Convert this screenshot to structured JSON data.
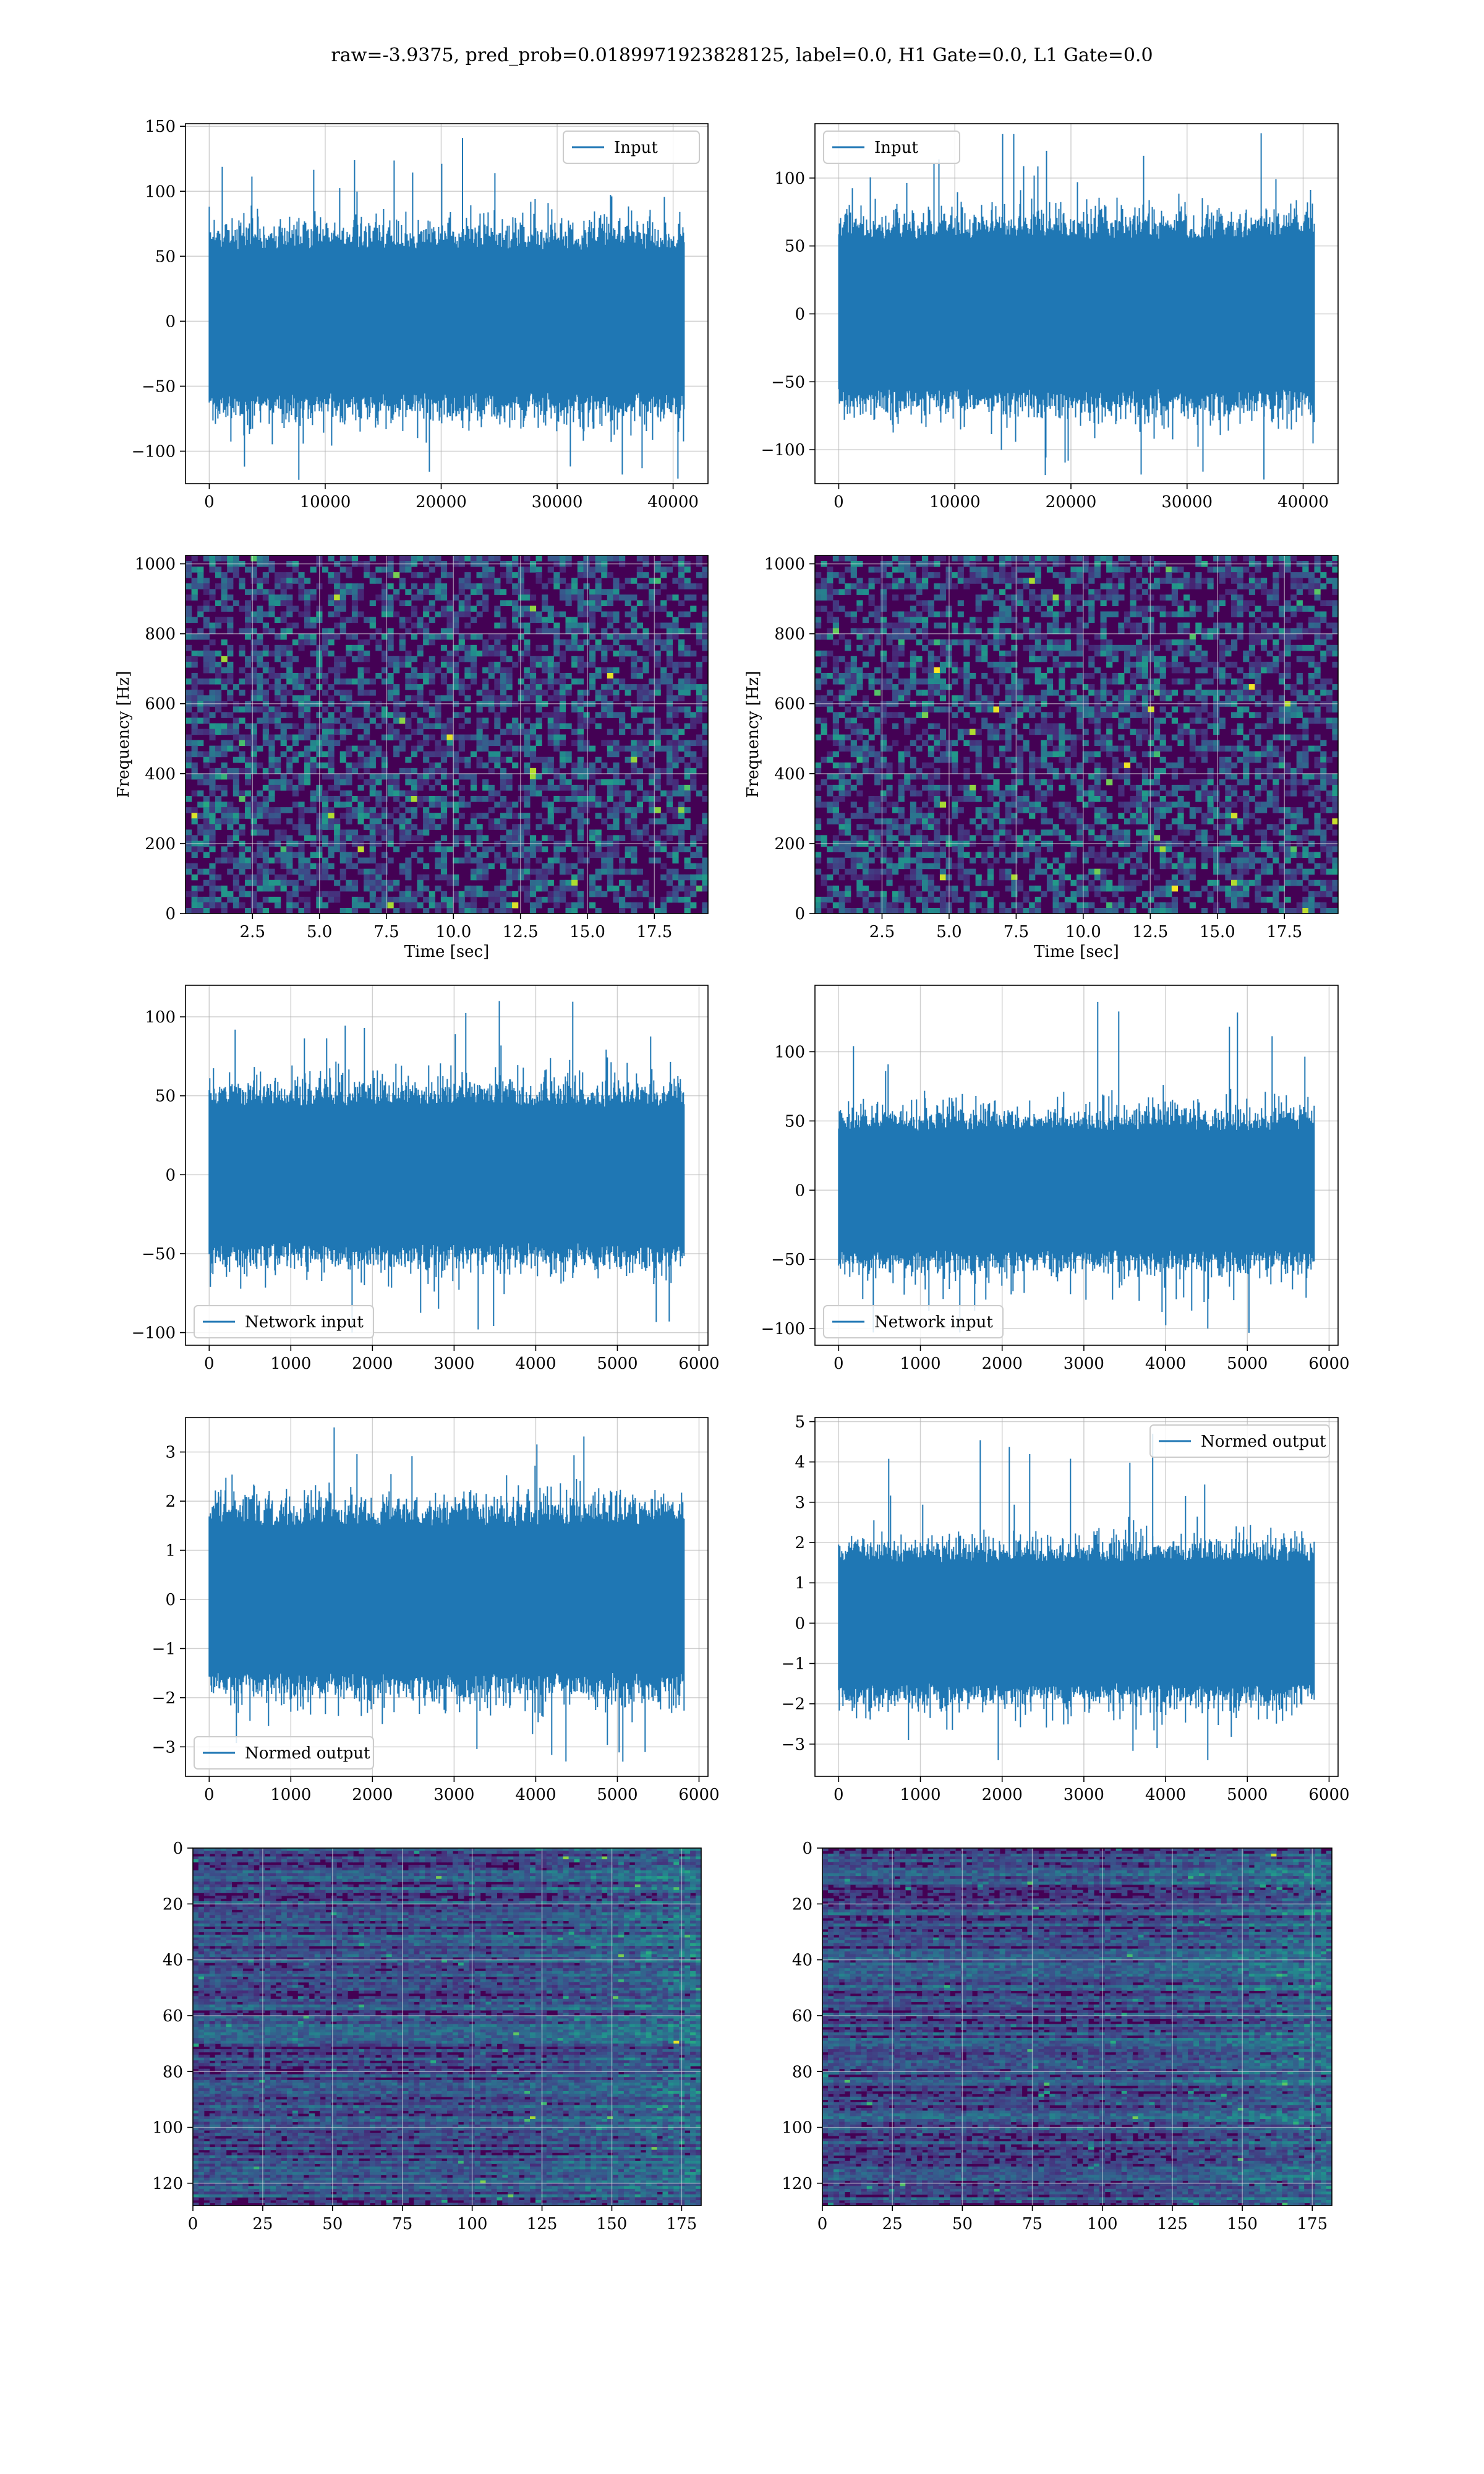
{
  "figure": {
    "suptitle": "raw=-3.9375, pred_prob=0.0189971923828125, label=0.0, H1 Gate=0.0, L1 Gate=0.0",
    "colors": {
      "line": "#1f77b4",
      "grid": "#b0b0b0",
      "viridis_low": "#440154",
      "viridis_high": "#fde725"
    }
  },
  "chart_data": [
    {
      "id": "r1c1",
      "type": "line",
      "title": "",
      "xlabel": "",
      "ylabel": "",
      "legend": "Input",
      "legend_loc": "upper right",
      "grid": true,
      "xlim": [
        -2048,
        43008
      ],
      "ylim": [
        -125,
        152
      ],
      "x_ticks": [
        0,
        10000,
        20000,
        30000,
        40000
      ],
      "y_ticks": [
        -100,
        -50,
        0,
        50,
        100,
        150
      ],
      "n_points": 40960,
      "x_range": [
        0,
        40960
      ],
      "envelope": {
        "typical_abs": 70,
        "max": 141,
        "min": -122
      },
      "series": [
        {
          "name": "Input"
        }
      ]
    },
    {
      "id": "r1c2",
      "type": "line",
      "title": "",
      "xlabel": "",
      "ylabel": "",
      "legend": "Input",
      "legend_loc": "upper left",
      "grid": true,
      "xlim": [
        -2048,
        43008
      ],
      "ylim": [
        -125,
        140
      ],
      "x_ticks": [
        0,
        10000,
        20000,
        30000,
        40000
      ],
      "y_ticks": [
        -100,
        -50,
        0,
        50,
        100
      ],
      "n_points": 40960,
      "x_range": [
        0,
        40960
      ],
      "envelope": {
        "typical_abs": 70,
        "max": 133,
        "min": -122
      },
      "series": [
        {
          "name": "Input"
        }
      ]
    },
    {
      "id": "r2c1",
      "type": "heatmap",
      "title": "",
      "xlabel": "Time [sec]",
      "ylabel": "Frequency [Hz]",
      "grid": true,
      "xlim": [
        0,
        19.5
      ],
      "ylim": [
        0,
        1024
      ],
      "x_ticks": [
        2.5,
        5.0,
        7.5,
        10.0,
        12.5,
        15.0,
        17.5
      ],
      "x_tick_labels": [
        "2.5",
        "5.0",
        "7.5",
        "10.0",
        "12.5",
        "15.0",
        "17.5"
      ],
      "y_ticks": [
        0,
        200,
        400,
        600,
        800,
        1000
      ],
      "colormap": "viridis"
    },
    {
      "id": "r2c2",
      "type": "heatmap",
      "title": "",
      "xlabel": "Time [sec]",
      "ylabel": "Frequency [Hz]",
      "grid": true,
      "xlim": [
        0,
        19.5
      ],
      "ylim": [
        0,
        1024
      ],
      "x_ticks": [
        2.5,
        5.0,
        7.5,
        10.0,
        12.5,
        15.0,
        17.5
      ],
      "x_tick_labels": [
        "2.5",
        "5.0",
        "7.5",
        "10.0",
        "12.5",
        "15.0",
        "17.5"
      ],
      "y_ticks": [
        0,
        200,
        400,
        600,
        800,
        1000
      ],
      "colormap": "viridis"
    },
    {
      "id": "r3c1",
      "type": "line",
      "title": "",
      "xlabel": "",
      "ylabel": "",
      "legend": "Network input",
      "legend_loc": "lower left",
      "grid": true,
      "xlim": [
        -290,
        6110
      ],
      "ylim": [
        -108,
        120
      ],
      "x_ticks": [
        0,
        1000,
        2000,
        3000,
        4000,
        5000,
        6000
      ],
      "y_ticks": [
        -100,
        -50,
        0,
        50,
        100
      ],
      "n_points": 5820,
      "x_range": [
        0,
        5820
      ],
      "envelope": {
        "typical_abs": 55,
        "max": 110,
        "min": -100
      },
      "series": [
        {
          "name": "Network input"
        }
      ]
    },
    {
      "id": "r3c2",
      "type": "line",
      "title": "",
      "xlabel": "",
      "ylabel": "",
      "legend": "Network input",
      "legend_loc": "lower left",
      "grid": true,
      "xlim": [
        -290,
        6110
      ],
      "ylim": [
        -112,
        148
      ],
      "x_ticks": [
        0,
        1000,
        2000,
        3000,
        4000,
        5000,
        6000
      ],
      "y_ticks": [
        -100,
        -50,
        0,
        50,
        100
      ],
      "n_points": 5820,
      "x_range": [
        0,
        5820
      ],
      "envelope": {
        "typical_abs": 55,
        "max": 136,
        "min": -103
      },
      "series": [
        {
          "name": "Network input"
        }
      ]
    },
    {
      "id": "r4c1",
      "type": "line",
      "title": "",
      "xlabel": "",
      "ylabel": "",
      "legend": "Normed output",
      "legend_loc": "lower left",
      "grid": true,
      "xlim": [
        -290,
        6110
      ],
      "ylim": [
        -3.6,
        3.7
      ],
      "x_ticks": [
        0,
        1000,
        2000,
        3000,
        4000,
        5000,
        6000
      ],
      "y_ticks": [
        -3,
        -2,
        -1,
        0,
        1,
        2,
        3
      ],
      "n_points": 5820,
      "x_range": [
        0,
        5820
      ],
      "envelope": {
        "typical_abs": 1.9,
        "max": 3.5,
        "min": -3.3
      },
      "series": [
        {
          "name": "Normed output"
        }
      ]
    },
    {
      "id": "r4c2",
      "type": "line",
      "title": "",
      "xlabel": "",
      "ylabel": "",
      "legend": "Normed output",
      "legend_loc": "upper right",
      "grid": true,
      "xlim": [
        -290,
        6110
      ],
      "ylim": [
        -3.8,
        5.1
      ],
      "x_ticks": [
        0,
        1000,
        2000,
        3000,
        4000,
        5000,
        6000
      ],
      "y_ticks": [
        -3,
        -2,
        -1,
        0,
        1,
        2,
        3,
        4,
        5
      ],
      "n_points": 5820,
      "x_range": [
        0,
        5820
      ],
      "envelope": {
        "typical_abs": 1.9,
        "max": 4.7,
        "min": -3.4
      },
      "series": [
        {
          "name": "Normed output"
        }
      ]
    },
    {
      "id": "r5c1",
      "type": "heatmap",
      "title": "",
      "xlabel": "",
      "ylabel": "",
      "grid": true,
      "xlim": [
        0,
        182
      ],
      "ylim": [
        128,
        0
      ],
      "x_ticks": [
        0,
        25,
        50,
        75,
        100,
        125,
        150,
        175
      ],
      "y_ticks": [
        0,
        20,
        40,
        60,
        80,
        100,
        120
      ],
      "colormap": "viridis",
      "rows": 128,
      "cols": 182
    },
    {
      "id": "r5c2",
      "type": "heatmap",
      "title": "",
      "xlabel": "",
      "ylabel": "",
      "grid": true,
      "xlim": [
        0,
        182
      ],
      "ylim": [
        128,
        0
      ],
      "x_ticks": [
        0,
        25,
        50,
        75,
        100,
        125,
        150,
        175
      ],
      "y_ticks": [
        0,
        20,
        40,
        60,
        80,
        100,
        120
      ],
      "colormap": "viridis",
      "rows": 128,
      "cols": 182
    }
  ]
}
